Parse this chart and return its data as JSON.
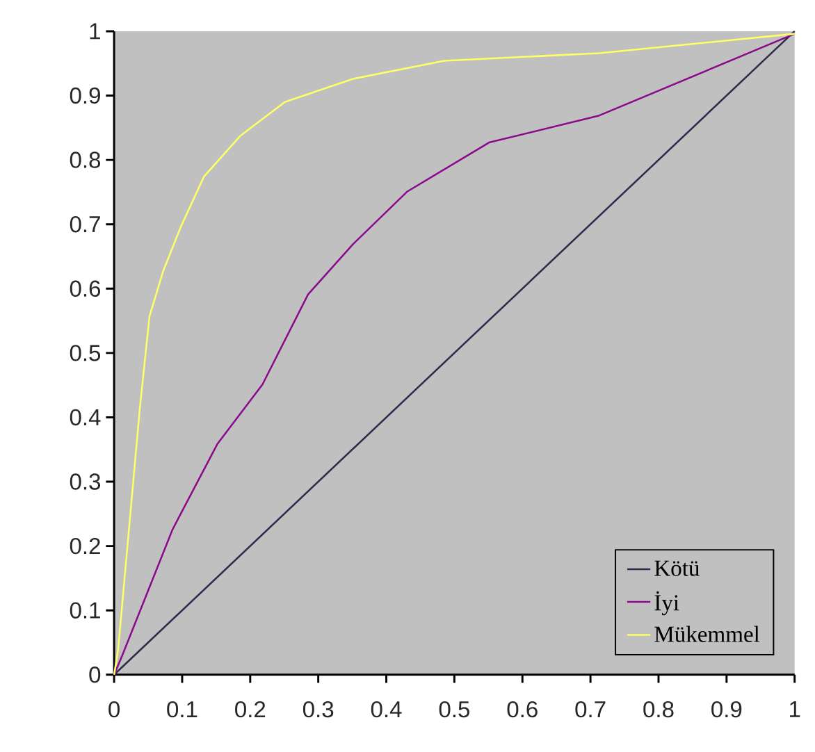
{
  "chart_data": {
    "type": "line",
    "xlim": [
      0,
      1
    ],
    "ylim": [
      0,
      1
    ],
    "xticks": [
      0,
      0.1,
      0.2,
      0.3,
      0.4,
      0.5,
      0.6,
      0.7,
      0.8,
      0.9,
      1
    ],
    "yticks": [
      0,
      0.1,
      0.2,
      0.3,
      0.4,
      0.5,
      0.6,
      0.7,
      0.8,
      0.9,
      1
    ],
    "legend": "bottom right",
    "marker": "none",
    "line_style": "solid",
    "series": [
      {
        "name": "Kötü",
        "color": "#2b2b4a",
        "x": [
          0,
          1
        ],
        "values": [
          0,
          1
        ]
      },
      {
        "name": "İyi",
        "color": "#8b0a8b",
        "x": [
          0,
          0.012,
          0.086,
          0.152,
          0.218,
          0.285,
          0.351,
          0.431,
          0.551,
          0.713,
          1
        ],
        "values": [
          0,
          0.03,
          0.226,
          0.359,
          0.451,
          0.591,
          0.669,
          0.751,
          0.827,
          0.869,
          0.996
        ]
      },
      {
        "name": "Mükemmel",
        "color": "#ffff66",
        "x": [
          0,
          0.006,
          0.038,
          0.052,
          0.072,
          0.098,
          0.132,
          0.186,
          0.251,
          0.351,
          0.485,
          0.713,
          1
        ],
        "values": [
          0,
          0.04,
          0.416,
          0.557,
          0.627,
          0.696,
          0.774,
          0.838,
          0.89,
          0.926,
          0.954,
          0.966,
          0.996
        ]
      }
    ]
  }
}
